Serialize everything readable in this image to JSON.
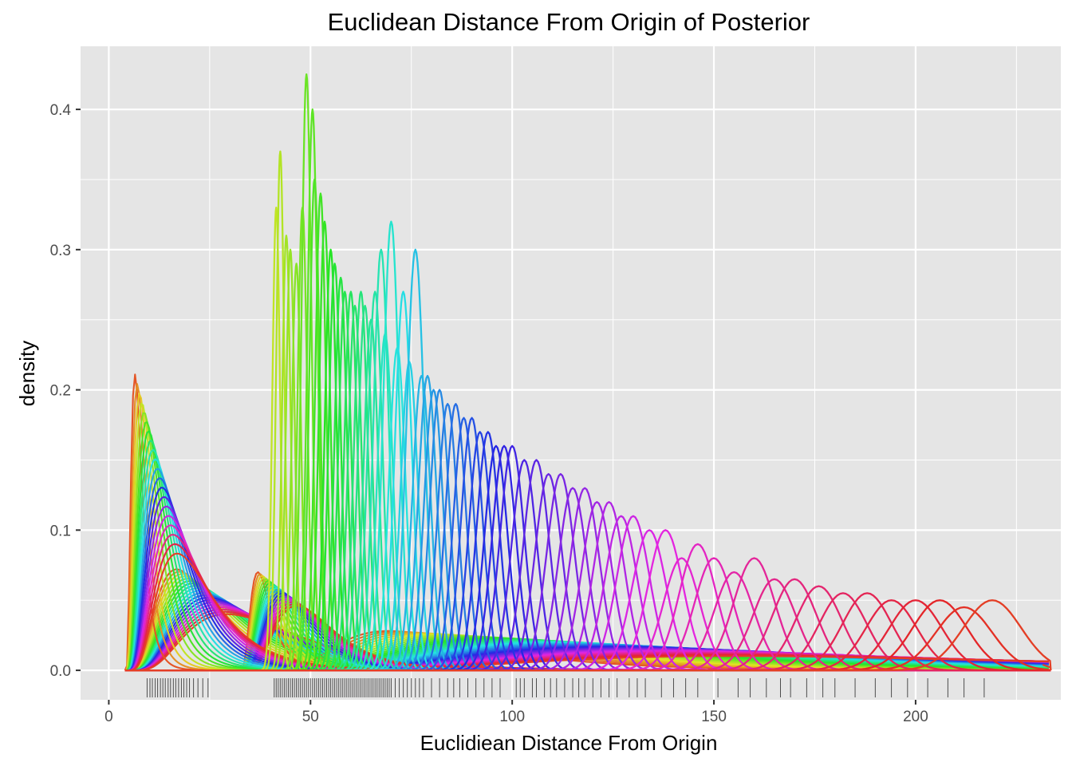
{
  "chart_data": {
    "type": "line",
    "title": "Euclidean Distance From Origin of Posterior",
    "xlabel": "Euclidiean Distance From Origin",
    "ylabel": "density",
    "xlim": [
      -7,
      236
    ],
    "ylim": [
      -0.021,
      0.445
    ],
    "x_ticks": [
      0,
      50,
      100,
      150,
      200
    ],
    "y_ticks": [
      0.0,
      0.1,
      0.2,
      0.3,
      0.4
    ],
    "x_tick_labels": [
      "0",
      "50",
      "100",
      "150",
      "200"
    ],
    "y_tick_labels": [
      "0.0",
      "0.1",
      "0.2",
      "0.3",
      "0.4"
    ],
    "grid": true,
    "legend": "none",
    "panel_background": "#e5e5e5",
    "grid_color": "#ffffff",
    "rug_color": "#333333",
    "hue_start": 15,
    "hue_end": 375,
    "group_a": {
      "start": 4,
      "count": 20,
      "first_peak_x": 6.5,
      "last_peak_x": 17.5,
      "first_peak_y": 0.211,
      "last_peak_y": 0.083
    },
    "group_b": {
      "start": 4,
      "count": 20,
      "first_peak_x": 17,
      "last_peak_x": 30,
      "first_peak_y": 0.072,
      "last_peak_y": 0.04
    },
    "group_c": {
      "start": 32,
      "count": 20,
      "first_peak_x": 37,
      "last_peak_x": 47,
      "first_peak_y": 0.07,
      "last_peak_y": 0.046
    },
    "group_d": {
      "start": 38,
      "count": 40,
      "first_peak_x": 70,
      "last_peak_x": 165,
      "first_peak_y": 0.028,
      "last_peak_y": 0.01
    },
    "main_peaks": [
      {
        "x": 41.5,
        "y": 0.33
      },
      {
        "x": 42.5,
        "y": 0.37
      },
      {
        "x": 44.0,
        "y": 0.31
      },
      {
        "x": 45.0,
        "y": 0.3
      },
      {
        "x": 46.5,
        "y": 0.29
      },
      {
        "x": 48.0,
        "y": 0.33
      },
      {
        "x": 49.0,
        "y": 0.425
      },
      {
        "x": 50.5,
        "y": 0.4
      },
      {
        "x": 51.0,
        "y": 0.35
      },
      {
        "x": 52.5,
        "y": 0.34
      },
      {
        "x": 53.5,
        "y": 0.32
      },
      {
        "x": 55.0,
        "y": 0.3
      },
      {
        "x": 56.0,
        "y": 0.29
      },
      {
        "x": 57.5,
        "y": 0.28
      },
      {
        "x": 58.5,
        "y": 0.27
      },
      {
        "x": 60.0,
        "y": 0.27
      },
      {
        "x": 61.0,
        "y": 0.26
      },
      {
        "x": 62.5,
        "y": 0.27
      },
      {
        "x": 63.5,
        "y": 0.26
      },
      {
        "x": 65.0,
        "y": 0.25
      },
      {
        "x": 66.0,
        "y": 0.27
      },
      {
        "x": 67.5,
        "y": 0.3
      },
      {
        "x": 68.5,
        "y": 0.24
      },
      {
        "x": 70.0,
        "y": 0.32
      },
      {
        "x": 71.5,
        "y": 0.23
      },
      {
        "x": 73.0,
        "y": 0.27
      },
      {
        "x": 74.5,
        "y": 0.22
      },
      {
        "x": 76.0,
        "y": 0.3
      },
      {
        "x": 77.5,
        "y": 0.21
      },
      {
        "x": 79.0,
        "y": 0.21
      },
      {
        "x": 80.5,
        "y": 0.2
      },
      {
        "x": 82.0,
        "y": 0.2
      },
      {
        "x": 84.0,
        "y": 0.19
      },
      {
        "x": 86.0,
        "y": 0.19
      },
      {
        "x": 88.0,
        "y": 0.18
      },
      {
        "x": 90.0,
        "y": 0.18
      },
      {
        "x": 92.0,
        "y": 0.17
      },
      {
        "x": 94.0,
        "y": 0.17
      },
      {
        "x": 96.0,
        "y": 0.16
      },
      {
        "x": 98.0,
        "y": 0.16
      },
      {
        "x": 100.0,
        "y": 0.16
      },
      {
        "x": 103.0,
        "y": 0.15
      },
      {
        "x": 106.0,
        "y": 0.15
      },
      {
        "x": 109.0,
        "y": 0.14
      },
      {
        "x": 112.0,
        "y": 0.14
      },
      {
        "x": 115.0,
        "y": 0.13
      },
      {
        "x": 118.0,
        "y": 0.13
      },
      {
        "x": 121.0,
        "y": 0.12
      },
      {
        "x": 124.0,
        "y": 0.12
      },
      {
        "x": 127.0,
        "y": 0.11
      },
      {
        "x": 130.0,
        "y": 0.11
      },
      {
        "x": 134.0,
        "y": 0.1
      },
      {
        "x": 138.0,
        "y": 0.1
      },
      {
        "x": 142.0,
        "y": 0.08
      },
      {
        "x": 146.0,
        "y": 0.09
      },
      {
        "x": 150.0,
        "y": 0.08
      },
      {
        "x": 155.0,
        "y": 0.07
      },
      {
        "x": 160.0,
        "y": 0.08
      },
      {
        "x": 165.0,
        "y": 0.065
      },
      {
        "x": 170.0,
        "y": 0.065
      },
      {
        "x": 176.0,
        "y": 0.06
      },
      {
        "x": 182.0,
        "y": 0.055
      },
      {
        "x": 188.0,
        "y": 0.055
      },
      {
        "x": 194.0,
        "y": 0.05
      },
      {
        "x": 200.0,
        "y": 0.05
      },
      {
        "x": 206.0,
        "y": 0.05
      },
      {
        "x": 212.0,
        "y": 0.045
      },
      {
        "x": 219.0,
        "y": 0.05
      }
    ],
    "rug_x": [
      9.5,
      10.2,
      10.8,
      11.5,
      12.1,
      12.8,
      13.4,
      14.0,
      14.7,
      15.3,
      16.0,
      16.6,
      17.3,
      18.0,
      18.6,
      19.3,
      20.0,
      21.0,
      22.1,
      23.3,
      24.6,
      41.0,
      41.5,
      42.0,
      42.5,
      43.0,
      43.5,
      44.0,
      44.5,
      45.0,
      45.5,
      46.0,
      46.5,
      47.0,
      47.5,
      48.0,
      48.5,
      49.0,
      49.5,
      50.0,
      50.5,
      51.0,
      51.5,
      52.0,
      52.5,
      53.0,
      53.5,
      54.0,
      54.5,
      55.0,
      55.5,
      56.0,
      56.5,
      57.0,
      57.5,
      58.0,
      58.5,
      59.0,
      59.5,
      60.0,
      60.5,
      61.0,
      61.5,
      62.0,
      62.5,
      63.0,
      63.5,
      64.0,
      64.5,
      65.0,
      65.5,
      66.0,
      66.5,
      67.0,
      67.5,
      68.0,
      68.5,
      69.0,
      69.5,
      70.0,
      71.0,
      72.0,
      73.0,
      74.0,
      75.0,
      76.0,
      77.0,
      78.0,
      80.0,
      82.0,
      84.0,
      85.5,
      87.0,
      89.0,
      91.0,
      93.0,
      95.0,
      97.0,
      101.0,
      102.0,
      103.0,
      105.0,
      106.0,
      108.0,
      109.5,
      111.0,
      113.0,
      115.0,
      116.5,
      118.0,
      120.0,
      122.0,
      124.0,
      126.0,
      129.0,
      131.0,
      133.0,
      137.0,
      140.0,
      143.0,
      146.0,
      151.0,
      156.0,
      159.0,
      163.0,
      166.5,
      169.0,
      173.0,
      177.0,
      180.0,
      185.0,
      190.0,
      194.0,
      198.0,
      203.0,
      208.0,
      212.0,
      217.0
    ]
  }
}
